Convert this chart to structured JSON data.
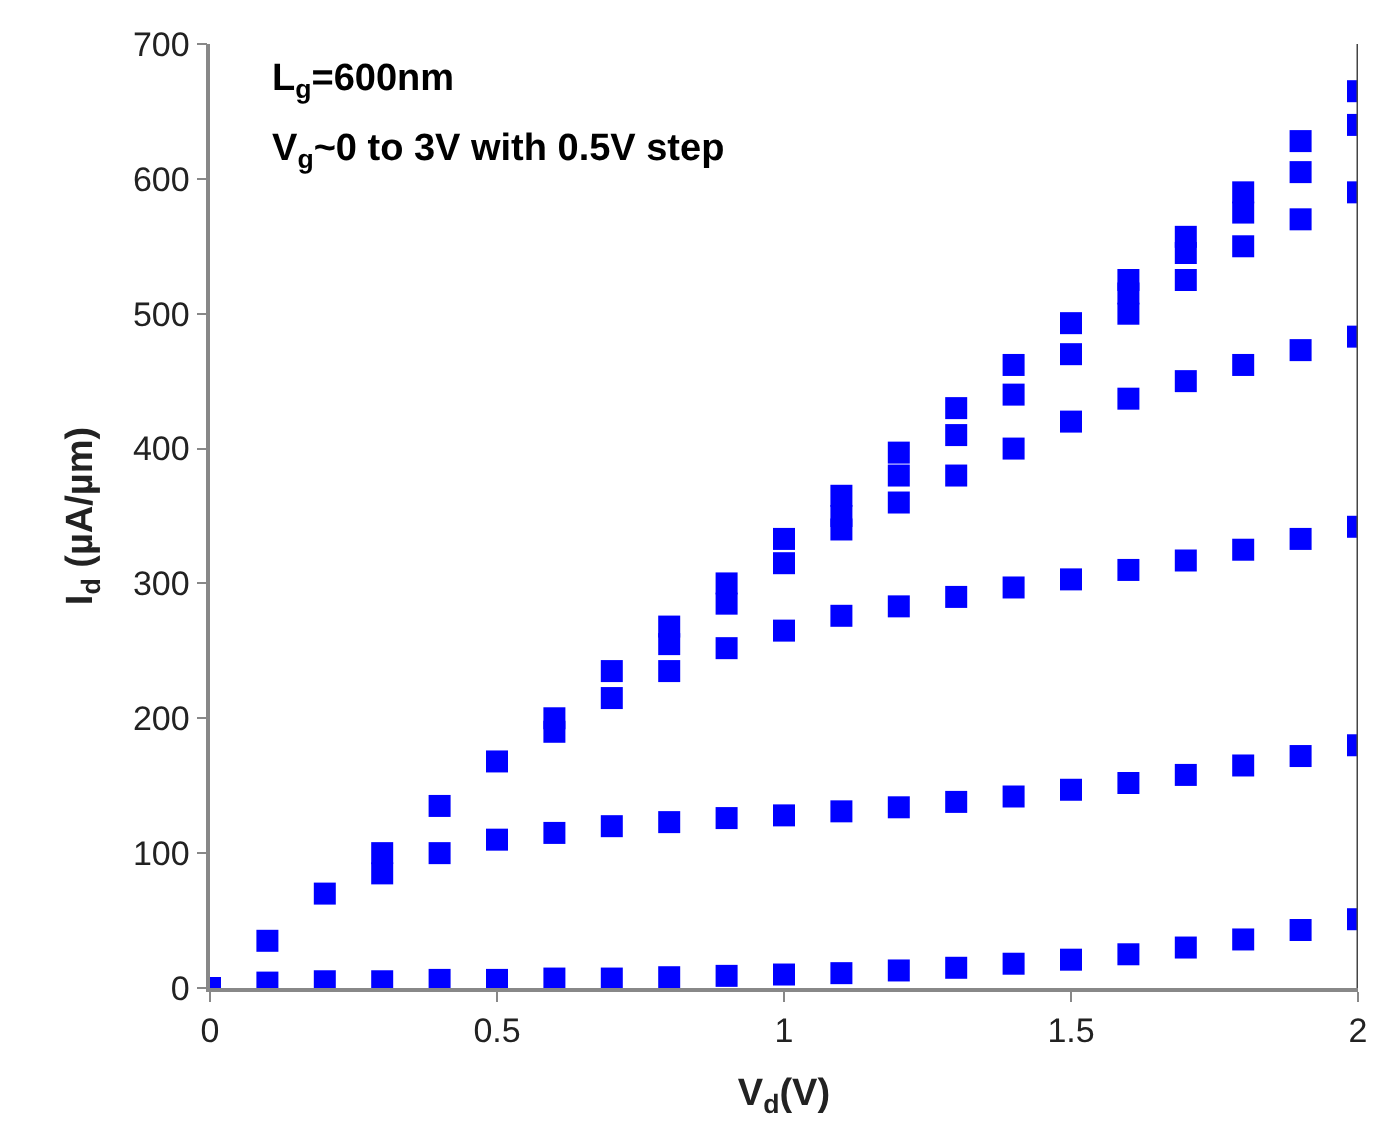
{
  "chart_data": {
    "type": "scatter",
    "xlabel": "V$_{d}$(V)",
    "ylabel": "I$_{d}$ (µA/µm)",
    "annotations": [
      "L$_{g}$=600nm",
      "V$_{g}$~0 to 3V with 0.5V step"
    ],
    "x": [
      0,
      0.1,
      0.2,
      0.3,
      0.4,
      0.5,
      0.6,
      0.7,
      0.8,
      0.9,
      1.0,
      1.1,
      1.2,
      1.3,
      1.4,
      1.5,
      1.6,
      1.7,
      1.8,
      1.9,
      2.0
    ],
    "series": [
      {
        "color": "#0000ff",
        "values": [
          null,
          4,
          5,
          5,
          6,
          6,
          7,
          7,
          8,
          9,
          10,
          11,
          13,
          15,
          18,
          21,
          25,
          30,
          36,
          43,
          51
        ]
      },
      {
        "color": "#0000ff",
        "values": [
          null,
          null,
          null,
          85,
          100,
          110,
          115,
          120,
          123,
          126,
          128,
          131,
          134,
          138,
          142,
          147,
          152,
          158,
          165,
          172,
          180
        ]
      },
      {
        "color": "#0000ff",
        "values": [
          null,
          null,
          null,
          null,
          null,
          null,
          190,
          215,
          235,
          252,
          265,
          276,
          283,
          290,
          297,
          303,
          310,
          317,
          325,
          333,
          342
        ]
      },
      {
        "color": "#0000ff",
        "values": [
          null,
          null,
          null,
          null,
          null,
          null,
          null,
          null,
          255,
          285,
          315,
          340,
          360,
          380,
          400,
          420,
          437,
          450,
          462,
          473,
          483
        ]
      },
      {
        "color": "#0000ff",
        "values": [
          null,
          null,
          null,
          null,
          null,
          null,
          null,
          null,
          null,
          null,
          null,
          350,
          380,
          410,
          440,
          470,
          500,
          525,
          550,
          570,
          590
        ]
      },
      {
        "color": "#0000ff",
        "values": [
          null,
          null,
          null,
          null,
          null,
          null,
          null,
          null,
          null,
          null,
          null,
          null,
          null,
          null,
          null,
          null,
          515,
          545,
          575,
          605,
          640
        ]
      },
      {
        "color": "#0000ff",
        "values": [
          0,
          35,
          70,
          100,
          135,
          168,
          200,
          235,
          268,
          300,
          333,
          365,
          397,
          430,
          462,
          493,
          525,
          557,
          590,
          628,
          665
        ]
      }
    ],
    "marker": "square",
    "xlim": [
      0,
      2
    ],
    "ylim": [
      0,
      700
    ],
    "xticks": [
      0,
      0.5,
      1,
      1.5,
      2
    ],
    "yticks": [
      0,
      100,
      200,
      300,
      400,
      500,
      600,
      700
    ]
  }
}
